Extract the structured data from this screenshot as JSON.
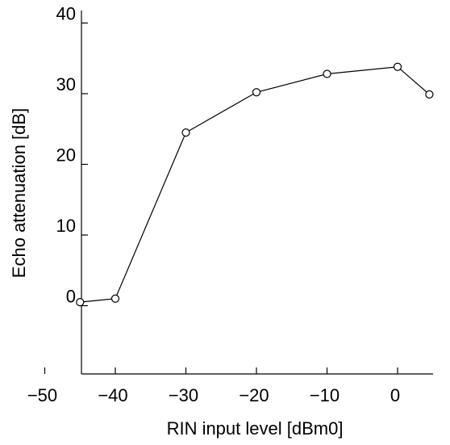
{
  "chart_data": {
    "type": "line",
    "title": "",
    "xlabel": "RIN input level [dBm0]",
    "ylabel": "Echo attenuation [dB]",
    "xlim": [
      -60,
      5
    ],
    "ylim": [
      -10,
      40
    ],
    "x_ticks": [
      -50,
      -40,
      -30,
      -20,
      -10,
      0
    ],
    "x_tick_labels": [
      "−50",
      "−40",
      "−30",
      "−20",
      "−10",
      "0"
    ],
    "y_ticks": [
      0,
      10,
      20,
      30,
      40
    ],
    "y_tick_labels": [
      "0",
      "10",
      "20",
      "30",
      "40"
    ],
    "grid": false,
    "legend": "none",
    "series": [
      {
        "marker": "open-circle",
        "color": "#000000",
        "x": [
          -45,
          -40,
          -30,
          -20,
          -10,
          0,
          4.5
        ],
        "y": [
          0.5,
          1.0,
          24.5,
          30.2,
          32.8,
          33.8,
          29.9
        ]
      }
    ]
  }
}
